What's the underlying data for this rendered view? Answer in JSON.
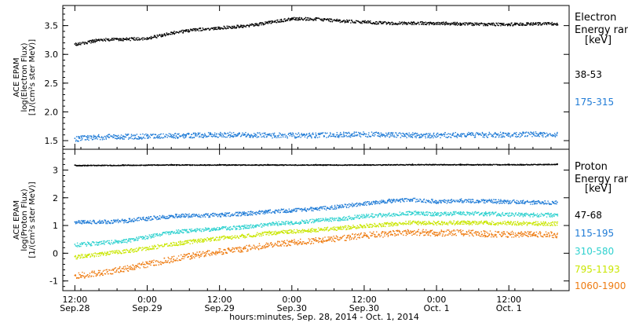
{
  "chart_data": [
    {
      "type": "scatter",
      "panel": "electron",
      "ylabel": [
        "ACE EPAM",
        "log(Electron Flux)",
        "[1/(cm²s ster MeV)]"
      ],
      "ylim": [
        1.35,
        3.85
      ],
      "yticks": [
        1.5,
        2.0,
        2.5,
        3.0,
        3.5
      ],
      "ytick_labels": [
        "1.5",
        "2.0",
        "2.5",
        "3.0",
        "3.5"
      ],
      "xlim": [
        -2,
        82
      ],
      "legend_title": [
        "Electron",
        "Energy ranges",
        "[keV]"
      ],
      "series": [
        {
          "name": "38-53",
          "color": "#000000",
          "x": [
            0,
            4,
            8,
            12,
            16,
            20,
            24,
            28,
            32,
            36,
            40,
            44,
            48,
            52,
            56,
            60,
            64,
            68,
            72,
            76,
            80
          ],
          "values": [
            3.18,
            3.26,
            3.27,
            3.29,
            3.38,
            3.44,
            3.47,
            3.5,
            3.56,
            3.63,
            3.62,
            3.59,
            3.57,
            3.55,
            3.55,
            3.55,
            3.54,
            3.53,
            3.53,
            3.54,
            3.54
          ]
        },
        {
          "name": "175-315",
          "color": "#1f7bd6",
          "x": [
            0,
            4,
            8,
            12,
            16,
            20,
            24,
            28,
            32,
            36,
            40,
            44,
            48,
            52,
            56,
            60,
            64,
            68,
            72,
            76,
            80
          ],
          "values": [
            1.54,
            1.57,
            1.58,
            1.58,
            1.59,
            1.6,
            1.61,
            1.61,
            1.6,
            1.6,
            1.6,
            1.61,
            1.62,
            1.61,
            1.6,
            1.6,
            1.61,
            1.61,
            1.61,
            1.62,
            1.62
          ]
        }
      ]
    },
    {
      "type": "scatter",
      "panel": "proton",
      "ylabel": [
        "ACE EPAM",
        "log(Proton Flux)",
        "[1/(cm²s ster MeV)]"
      ],
      "ylim": [
        -1.35,
        3.75
      ],
      "yticks": [
        -1,
        0,
        1,
        2,
        3
      ],
      "ytick_labels": [
        "-1",
        "0",
        "1",
        "2",
        "3"
      ],
      "xlim": [
        -2,
        82
      ],
      "xticks": [
        0,
        12,
        24,
        36,
        48,
        60,
        72
      ],
      "xtick_labels": [
        "12:00",
        "0:00",
        "12:00",
        "0:00",
        "12:00",
        "0:00",
        "12:00"
      ],
      "xtick_sublabels": [
        "Sep.28",
        "Sep.29",
        "Sep.29",
        "Sep.30",
        "Sep.30",
        "Oct. 1",
        "Oct. 1"
      ],
      "xlabel": "hours:minutes, Sep. 28, 2014 - Oct. 1, 2014",
      "legend_title": [
        "Proton",
        "Energy ranges",
        "[keV]"
      ],
      "series": [
        {
          "name": "47-68",
          "color": "#000000",
          "x": [
            0,
            8,
            16,
            24,
            32,
            40,
            48,
            56,
            64,
            72,
            80
          ],
          "values": [
            3.18,
            3.19,
            3.2,
            3.2,
            3.2,
            3.2,
            3.2,
            3.21,
            3.21,
            3.21,
            3.22
          ]
        },
        {
          "name": "115-195",
          "color": "#1f7bd6",
          "x": [
            0,
            4,
            8,
            12,
            16,
            20,
            24,
            28,
            32,
            36,
            40,
            44,
            48,
            52,
            56,
            60,
            64,
            68,
            72,
            76,
            80
          ],
          "values": [
            1.13,
            1.14,
            1.18,
            1.27,
            1.36,
            1.37,
            1.4,
            1.44,
            1.52,
            1.56,
            1.62,
            1.7,
            1.81,
            1.9,
            1.94,
            1.88,
            1.91,
            1.9,
            1.87,
            1.85,
            1.84
          ]
        },
        {
          "name": "310-580",
          "color": "#2ed1cf",
          "x": [
            0,
            4,
            8,
            12,
            16,
            20,
            24,
            28,
            32,
            36,
            40,
            44,
            48,
            52,
            56,
            60,
            64,
            68,
            72,
            76,
            80
          ],
          "values": [
            0.32,
            0.38,
            0.45,
            0.6,
            0.78,
            0.86,
            0.9,
            0.96,
            1.06,
            1.12,
            1.19,
            1.26,
            1.36,
            1.4,
            1.47,
            1.43,
            1.46,
            1.44,
            1.42,
            1.4,
            1.39
          ]
        },
        {
          "name": "795-1193",
          "color": "#c9e600",
          "x": [
            0,
            4,
            8,
            12,
            16,
            20,
            24,
            28,
            32,
            36,
            40,
            44,
            48,
            52,
            56,
            60,
            64,
            68,
            72,
            76,
            80
          ],
          "values": [
            -0.12,
            -0.02,
            0.08,
            0.2,
            0.34,
            0.46,
            0.56,
            0.64,
            0.74,
            0.8,
            0.86,
            0.92,
            1.0,
            1.06,
            1.12,
            1.1,
            1.12,
            1.11,
            1.1,
            1.09,
            1.08
          ]
        },
        {
          "name": "1060-1900",
          "color": "#ee7b10",
          "x": [
            0,
            4,
            8,
            12,
            16,
            20,
            24,
            28,
            32,
            36,
            40,
            44,
            48,
            52,
            56,
            60,
            64,
            68,
            72,
            76,
            80
          ],
          "values": [
            -0.8,
            -0.7,
            -0.55,
            -0.38,
            -0.2,
            -0.05,
            0.08,
            0.18,
            0.32,
            0.4,
            0.48,
            0.56,
            0.66,
            0.72,
            0.78,
            0.74,
            0.76,
            0.72,
            0.7,
            0.69,
            0.68
          ]
        }
      ]
    }
  ]
}
